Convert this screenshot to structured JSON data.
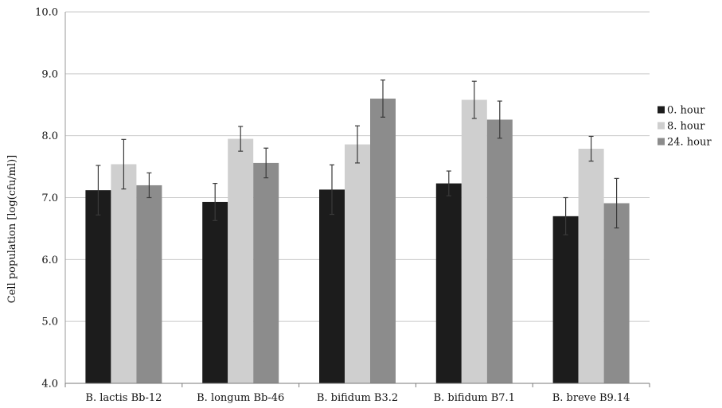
{
  "chart_data": {
    "type": "bar",
    "ylabel": "Cell population [log(cfu/ml)]",
    "ylim": [
      4.0,
      10.0
    ],
    "yticks": [
      "4.0",
      "5.0",
      "6.0",
      "7.0",
      "8.0",
      "9.0",
      "10.0"
    ],
    "grid": true,
    "legend_position": "right",
    "categories": [
      "B. lactis Bb-12",
      "B. longum Bb-46",
      "B. bifidum B3.2",
      "B. bifidum B7.1",
      "B. breve B9.14"
    ],
    "series": [
      {
        "name": "0. hour",
        "color": "#1c1c1c",
        "values": [
          7.12,
          6.93,
          7.13,
          7.23,
          6.7
        ],
        "errors": [
          0.4,
          0.3,
          0.4,
          0.2,
          0.3
        ]
      },
      {
        "name": "8. hour",
        "color": "#cfcfcf",
        "values": [
          7.54,
          7.95,
          7.86,
          8.58,
          7.79
        ],
        "errors": [
          0.4,
          0.2,
          0.3,
          0.3,
          0.2
        ]
      },
      {
        "name": "24. hour",
        "color": "#8c8c8c",
        "values": [
          7.2,
          7.56,
          8.6,
          8.26,
          6.91
        ],
        "errors": [
          0.2,
          0.24,
          0.3,
          0.3,
          0.4
        ]
      }
    ]
  }
}
